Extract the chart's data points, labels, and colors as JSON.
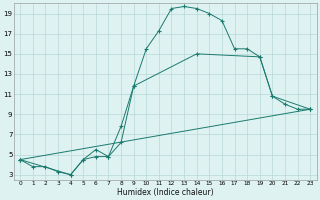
{
  "background_color": "#dff2f2",
  "grid_color": "#b8d8d8",
  "line_color": "#1a7a6e",
  "xlabel": "Humidex (Indice chaleur)",
  "xlim": [
    -0.5,
    23.5
  ],
  "ylim": [
    2.5,
    20.0
  ],
  "yticks": [
    3,
    5,
    7,
    9,
    11,
    13,
    15,
    17,
    19
  ],
  "xticks": [
    0,
    1,
    2,
    3,
    4,
    5,
    6,
    7,
    8,
    9,
    10,
    11,
    12,
    13,
    14,
    15,
    16,
    17,
    18,
    19,
    20,
    21,
    22,
    23
  ],
  "line1_x": [
    0,
    1,
    2,
    3,
    4,
    5,
    6,
    7,
    8,
    9,
    10,
    11,
    12,
    13,
    14,
    15,
    16,
    17,
    18,
    19,
    20,
    21,
    22,
    23
  ],
  "line1_y": [
    4.5,
    3.8,
    3.8,
    3.3,
    3.0,
    4.5,
    4.8,
    4.8,
    6.2,
    11.8,
    15.5,
    17.3,
    19.5,
    19.7,
    19.5,
    19.0,
    18.3,
    15.5,
    15.5,
    14.7,
    10.8,
    10.0,
    9.5,
    9.5
  ],
  "line2_x": [
    0,
    4,
    5,
    6,
    7,
    8,
    9,
    14,
    19,
    20,
    23
  ],
  "line2_y": [
    4.5,
    3.0,
    4.5,
    5.5,
    4.8,
    7.8,
    11.8,
    15.0,
    14.7,
    10.8,
    9.5
  ],
  "line3_x": [
    0,
    23
  ],
  "line3_y": [
    4.5,
    9.5
  ]
}
